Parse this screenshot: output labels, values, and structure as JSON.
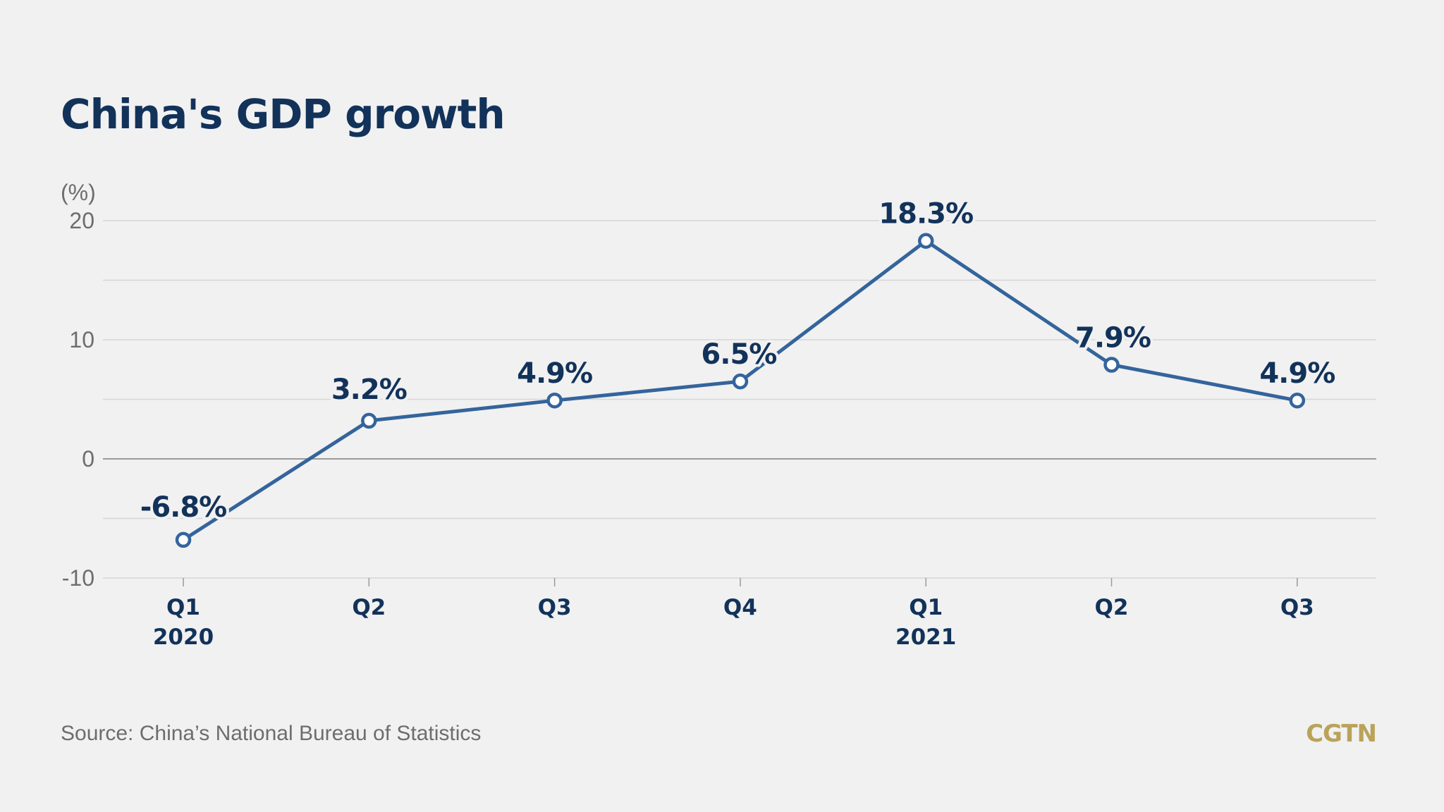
{
  "chart_data": {
    "type": "line",
    "title": "China's GDP growth",
    "ylabel": "(%)",
    "ylim": [
      -10,
      20
    ],
    "yticks": [
      20,
      10,
      0,
      -10
    ],
    "gridlines": [
      20,
      15,
      10,
      5,
      0,
      -5,
      -10
    ],
    "categories": [
      {
        "quarter": "Q1",
        "year": "2020"
      },
      {
        "quarter": "Q2",
        "year": ""
      },
      {
        "quarter": "Q3",
        "year": ""
      },
      {
        "quarter": "Q4",
        "year": ""
      },
      {
        "quarter": "Q1",
        "year": "2021"
      },
      {
        "quarter": "Q2",
        "year": ""
      },
      {
        "quarter": "Q3",
        "year": ""
      }
    ],
    "series": [
      {
        "name": "GDP growth",
        "values": [
          -6.8,
          3.2,
          4.9,
          6.5,
          18.3,
          7.9,
          4.9
        ],
        "labels": [
          "-6.8%",
          "3.2%",
          "4.9%",
          "6.5%",
          "18.3%",
          "7.9%",
          "4.9%"
        ]
      }
    ]
  },
  "footer": {
    "source": "Source: China’s National Bureau of Statistics",
    "logo": "CGTN"
  },
  "colors": {
    "line": "#34649c",
    "title": "#12325a",
    "grid": "#d6d6d6",
    "zero_line": "#9a9a9a",
    "logo": "#b9a35a"
  }
}
